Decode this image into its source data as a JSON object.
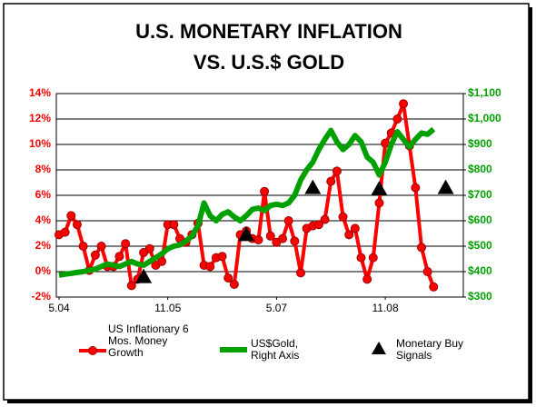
{
  "chart_data": {
    "type": "line",
    "title": [
      "U.S. MONETARY INFLATION",
      "VS. U.S.$ GOLD"
    ],
    "categories": [
      "5.04",
      null,
      null,
      null,
      null,
      null,
      null,
      null,
      null,
      null,
      null,
      null,
      null,
      null,
      null,
      null,
      null,
      null,
      "11.05",
      null,
      null,
      null,
      null,
      null,
      null,
      null,
      null,
      null,
      null,
      null,
      null,
      null,
      null,
      null,
      null,
      null,
      "5.07",
      null,
      null,
      null,
      null,
      null,
      null,
      null,
      null,
      null,
      null,
      null,
      null,
      null,
      null,
      null,
      null,
      null,
      "11.08",
      null,
      null,
      null,
      null,
      null,
      null,
      null,
      null,
      null,
      null
    ],
    "series": [
      {
        "name": "US Inflationary 6 Mos. Money Growth",
        "color": "#ff0000",
        "marker": "circle",
        "line": true,
        "axis": "y",
        "values": [
          2.9,
          3.1,
          4.4,
          3.7,
          2.0,
          0.1,
          1.3,
          2.0,
          0.4,
          0.4,
          1.2,
          2.2,
          -1.1,
          -0.6,
          1.5,
          1.8,
          0.5,
          0.8,
          3.7,
          3.7,
          2.6,
          2.3,
          2.9,
          3.8,
          0.5,
          0.4,
          1.1,
          1.2,
          -0.5,
          -1.0,
          2.9,
          3.2,
          2.6,
          2.5,
          6.3,
          2.8,
          2.3,
          2.6,
          4.0,
          2.4,
          -0.1,
          3.4,
          3.6,
          3.7,
          4.1,
          7.1,
          7.9,
          4.3,
          2.9,
          3.4,
          1.1,
          -0.6,
          1.1,
          5.4,
          10.1,
          10.9,
          12.0,
          13.2,
          9.9,
          6.6,
          1.9,
          0.0,
          -1.2,
          null,
          null
        ]
      },
      {
        "name": "US$Gold, Right Axis",
        "color": "#00a000",
        "marker": "none",
        "line": true,
        "axis": "y2",
        "values": [
          386,
          390,
          393,
          397,
          400,
          405,
          410,
          420,
          430,
          425,
          420,
          430,
          440,
          430,
          425,
          440,
          455,
          470,
          490,
          500,
          505,
          520,
          540,
          580,
          670,
          620,
          600,
          625,
          635,
          615,
          600,
          620,
          645,
          650,
          640,
          660,
          665,
          660,
          670,
          700,
          760,
          800,
          830,
          880,
          920,
          955,
          910,
          880,
          900,
          935,
          910,
          850,
          830,
          780,
          830,
          900,
          950,
          920,
          890,
          920,
          945,
          940,
          960,
          null,
          null
        ]
      },
      {
        "name": "Monetary Buy Signals",
        "color": "#000000",
        "marker": "triangle",
        "line": false,
        "axis": "y",
        "values": [
          null,
          null,
          null,
          null,
          null,
          null,
          null,
          null,
          null,
          null,
          null,
          null,
          null,
          null,
          -0.4,
          null,
          null,
          null,
          null,
          null,
          null,
          null,
          null,
          null,
          null,
          null,
          null,
          null,
          null,
          null,
          null,
          2.9,
          null,
          null,
          null,
          null,
          null,
          null,
          null,
          null,
          null,
          null,
          6.6,
          null,
          null,
          null,
          null,
          null,
          null,
          null,
          null,
          null,
          null,
          6.5,
          null,
          null,
          null,
          null,
          null,
          null,
          null,
          null,
          null,
          null,
          6.6
        ]
      }
    ],
    "ylim": [
      -2,
      14
    ],
    "yticks": [
      {
        "value": -2,
        "label": "-2%"
      },
      {
        "value": 0,
        "label": "0%"
      },
      {
        "value": 2,
        "label": "2%"
      },
      {
        "value": 4,
        "label": "4%"
      },
      {
        "value": 6,
        "label": "6%"
      },
      {
        "value": 8,
        "label": "8%"
      },
      {
        "value": 10,
        "label": "10%"
      },
      {
        "value": 12,
        "label": "12%"
      },
      {
        "value": 14,
        "label": "14%"
      }
    ],
    "y2lim": [
      300,
      1100
    ],
    "y2ticks": [
      {
        "value": 300,
        "label": "$300"
      },
      {
        "value": 400,
        "label": "$400"
      },
      {
        "value": 500,
        "label": "$500"
      },
      {
        "value": 600,
        "label": "$600"
      },
      {
        "value": 700,
        "label": "$700"
      },
      {
        "value": 800,
        "label": "$800"
      },
      {
        "value": 900,
        "label": "$900"
      },
      {
        "value": 1000,
        "label": "$1,000"
      },
      {
        "value": 1100,
        "label": "$1,100"
      }
    ],
    "grid": true
  }
}
